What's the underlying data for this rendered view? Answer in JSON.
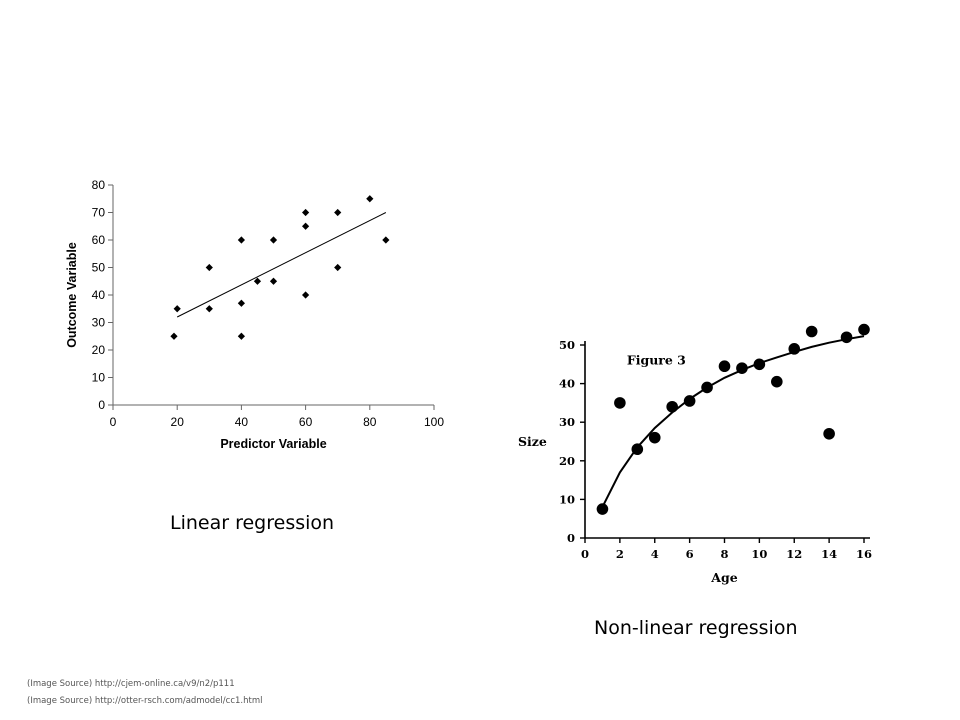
{
  "charts": {
    "linear": {
      "chart_data": {
        "type": "scatter",
        "xlabel": "Predictor Variable",
        "ylabel": "Outcome Variable",
        "xlim": [
          0,
          100
        ],
        "ylim": [
          0,
          80
        ],
        "x_ticks": [
          0,
          20,
          40,
          60,
          80,
          100
        ],
        "y_ticks": [
          0,
          10,
          20,
          30,
          40,
          50,
          60,
          70,
          80
        ],
        "x_tick_labels": [
          "0",
          "20",
          "40",
          "60",
          "80",
          "100"
        ],
        "y_tick_labels": [
          "0",
          "10",
          "20",
          "30",
          "40",
          "50",
          "60",
          "70",
          "80"
        ],
        "grid": false,
        "marker": "diamond",
        "points": [
          {
            "x": 19,
            "y": 25
          },
          {
            "x": 20,
            "y": 35
          },
          {
            "x": 30,
            "y": 50
          },
          {
            "x": 30,
            "y": 35
          },
          {
            "x": 40,
            "y": 60
          },
          {
            "x": 40,
            "y": 37
          },
          {
            "x": 40,
            "y": 25
          },
          {
            "x": 45,
            "y": 45
          },
          {
            "x": 50,
            "y": 60
          },
          {
            "x": 50,
            "y": 45
          },
          {
            "x": 60,
            "y": 70
          },
          {
            "x": 60,
            "y": 65
          },
          {
            "x": 60,
            "y": 40
          },
          {
            "x": 70,
            "y": 70
          },
          {
            "x": 70,
            "y": 50
          },
          {
            "x": 80,
            "y": 75
          },
          {
            "x": 85,
            "y": 60
          }
        ],
        "trend_line": {
          "x": [
            20,
            85
          ],
          "y": [
            32,
            70
          ]
        }
      }
    },
    "nonlinear": {
      "chart_data": {
        "type": "scatter",
        "xlabel": "Age",
        "ylabel": "Size",
        "annotation": "Figure 3",
        "xlim": [
          0,
          16
        ],
        "ylim": [
          0,
          50
        ],
        "x_ticks": [
          0,
          2,
          4,
          6,
          8,
          10,
          12,
          14,
          16
        ],
        "y_ticks": [
          0,
          10,
          20,
          30,
          40,
          50
        ],
        "x_tick_labels": [
          "0",
          "2",
          "4",
          "6",
          "8",
          "10",
          "12",
          "14",
          "16"
        ],
        "y_tick_labels": [
          "0",
          "10",
          "20",
          "30",
          "40",
          "50"
        ],
        "grid": false,
        "marker": "circle",
        "points": [
          {
            "x": 1,
            "y": 7.5
          },
          {
            "x": 2,
            "y": 35
          },
          {
            "x": 3,
            "y": 23
          },
          {
            "x": 4,
            "y": 26
          },
          {
            "x": 5,
            "y": 34
          },
          {
            "x": 6,
            "y": 35.5
          },
          {
            "x": 7,
            "y": 39
          },
          {
            "x": 8,
            "y": 44.5
          },
          {
            "x": 9,
            "y": 44
          },
          {
            "x": 10,
            "y": 45
          },
          {
            "x": 11,
            "y": 40.5
          },
          {
            "x": 12,
            "y": 49
          },
          {
            "x": 13,
            "y": 53.5
          },
          {
            "x": 14,
            "y": 27
          },
          {
            "x": 15,
            "y": 52
          },
          {
            "x": 16,
            "y": 54
          }
        ],
        "fit_curve": {
          "x": [
            1,
            2,
            3,
            4,
            5,
            6,
            7,
            8,
            9,
            10,
            11,
            12,
            13,
            14,
            15,
            16
          ],
          "y": [
            8,
            17,
            23.5,
            28.5,
            32.5,
            36,
            39,
            41.5,
            43.5,
            45.3,
            46.8,
            48.2,
            49.5,
            50.6,
            51.5,
            52.3
          ]
        }
      }
    }
  },
  "captions": {
    "linear": "Linear regression",
    "nonlinear": "Non-linear regression"
  },
  "sources": [
    "(Image Source) http://cjem-online.ca/v9/n2/p111",
    "(Image Source) http://otter-rsch.com/admodel/cc1.html"
  ],
  "colors": {
    "background": "#ffffff",
    "marks": "#000000",
    "source_text": "#555555"
  }
}
